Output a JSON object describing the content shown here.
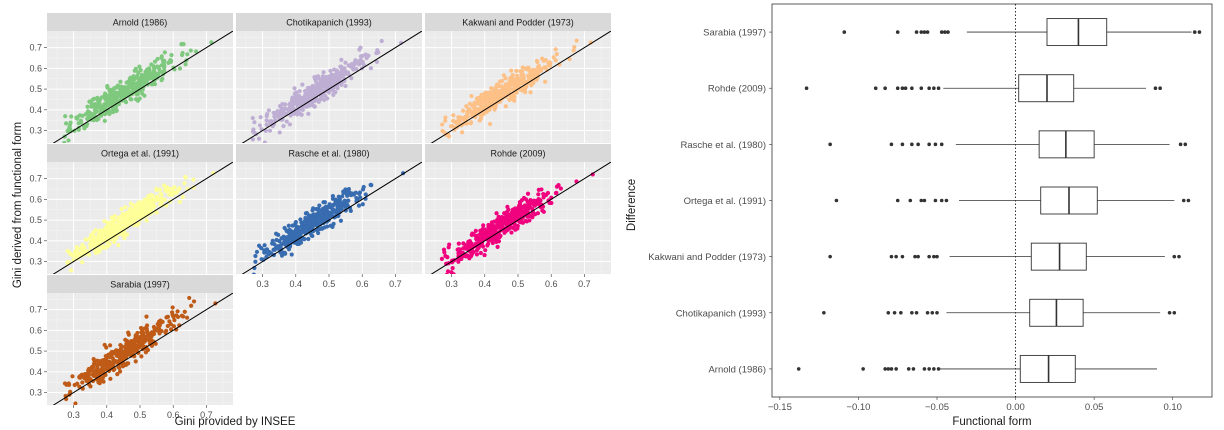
{
  "chart_data": [
    {
      "type": "scatter",
      "xlabel": "Gini provided by INSEE",
      "ylabel": "Gini derived from functional form",
      "xlim": [
        0.22,
        0.78
      ],
      "ylim": [
        0.24,
        0.78
      ],
      "x_ticks": [
        0.3,
        0.4,
        0.5,
        0.6,
        0.7
      ],
      "y_ticks": [
        0.3,
        0.4,
        0.5,
        0.6,
        0.7
      ],
      "tick_labels": [
        "0.3",
        "0.4",
        "0.5",
        "0.6",
        "0.7"
      ],
      "grid": true,
      "reference_line": "y = x",
      "panels": [
        {
          "name": "Arnold (1986)",
          "color": "#7fc97f",
          "bias": 0.03,
          "slope": 1.02
        },
        {
          "name": "Chotikapanich (1993)",
          "color": "#beaed4",
          "bias": 0.026,
          "slope": 1.04
        },
        {
          "name": "Kakwani and Podder (1973)",
          "color": "#fdc086",
          "bias": 0.028,
          "slope": 1.05
        },
        {
          "name": "Ortega et al. (1991)",
          "color": "#ffff99",
          "bias": 0.034,
          "slope": 1.06
        },
        {
          "name": "Rasche et al. (1980)",
          "color": "#386cb0",
          "bias": 0.032,
          "slope": 1.05
        },
        {
          "name": "Rohde (2009)",
          "color": "#f0027f",
          "bias": 0.02,
          "slope": 1.03
        },
        {
          "name": "Sarabia (1997)",
          "color": "#bf5b17",
          "bias": 0.04,
          "slope": 1.07
        }
      ]
    },
    {
      "type": "boxplot",
      "xlabel": "Functional form",
      "ylabel": "Difference",
      "xlim": [
        -0.155,
        0.125
      ],
      "x_ticks": [
        -0.15,
        -0.1,
        -0.05,
        0,
        0.05,
        0.1
      ],
      "x_tick_labels": [
        "−0.15",
        "−0.10",
        "−0.05",
        "0.00",
        "0.05",
        "0.10"
      ],
      "reference_line_x": 0,
      "series": [
        {
          "name": "Sarabia (1997)",
          "whisker_low": -0.031,
          "q1": 0.02,
          "median": 0.04,
          "q3": 0.058,
          "whisker_high": 0.112,
          "outliers": [
            -0.109,
            -0.075,
            -0.063,
            -0.06,
            -0.058,
            -0.056,
            -0.047,
            -0.045,
            -0.043,
            0.114,
            0.117
          ]
        },
        {
          "name": "Rohde (2009)",
          "whisker_low": -0.046,
          "q1": 0.002,
          "median": 0.02,
          "q3": 0.037,
          "whisker_high": 0.083,
          "outliers": [
            -0.133,
            -0.089,
            -0.083,
            -0.075,
            -0.072,
            -0.07,
            -0.066,
            -0.06,
            -0.055,
            -0.052,
            -0.049,
            0.089,
            0.092
          ]
        },
        {
          "name": "Rasche et al. (1980)",
          "whisker_low": -0.038,
          "q1": 0.015,
          "median": 0.032,
          "q3": 0.05,
          "whisker_high": 0.098,
          "outliers": [
            -0.118,
            -0.079,
            -0.072,
            -0.066,
            -0.062,
            -0.055,
            -0.051,
            -0.047,
            0.105,
            0.108
          ]
        },
        {
          "name": "Ortega et al. (1991)",
          "whisker_low": -0.036,
          "q1": 0.016,
          "median": 0.034,
          "q3": 0.052,
          "whisker_high": 0.101,
          "outliers": [
            -0.114,
            -0.075,
            -0.067,
            -0.06,
            -0.058,
            -0.051,
            -0.047,
            -0.044,
            0.107,
            0.11
          ]
        },
        {
          "name": "Kakwani and Podder (1973)",
          "whisker_low": -0.042,
          "q1": 0.01,
          "median": 0.028,
          "q3": 0.045,
          "whisker_high": 0.095,
          "outliers": [
            -0.118,
            -0.079,
            -0.076,
            -0.072,
            -0.064,
            -0.062,
            -0.055,
            -0.052,
            -0.05,
            0.101,
            0.104
          ]
        },
        {
          "name": "Chotikapanich (1993)",
          "whisker_low": -0.044,
          "q1": 0.009,
          "median": 0.026,
          "q3": 0.043,
          "whisker_high": 0.092,
          "outliers": [
            -0.122,
            -0.081,
            -0.077,
            -0.073,
            -0.066,
            -0.063,
            -0.056,
            -0.053,
            -0.05,
            0.098,
            0.101
          ]
        },
        {
          "name": "Arnold (1986)",
          "whisker_low": -0.048,
          "q1": 0.003,
          "median": 0.021,
          "q3": 0.038,
          "whisker_high": 0.09,
          "outliers": [
            -0.138,
            -0.097,
            -0.083,
            -0.081,
            -0.079,
            -0.076,
            -0.068,
            -0.065,
            -0.058,
            -0.055,
            -0.052,
            -0.049
          ]
        }
      ]
    }
  ]
}
